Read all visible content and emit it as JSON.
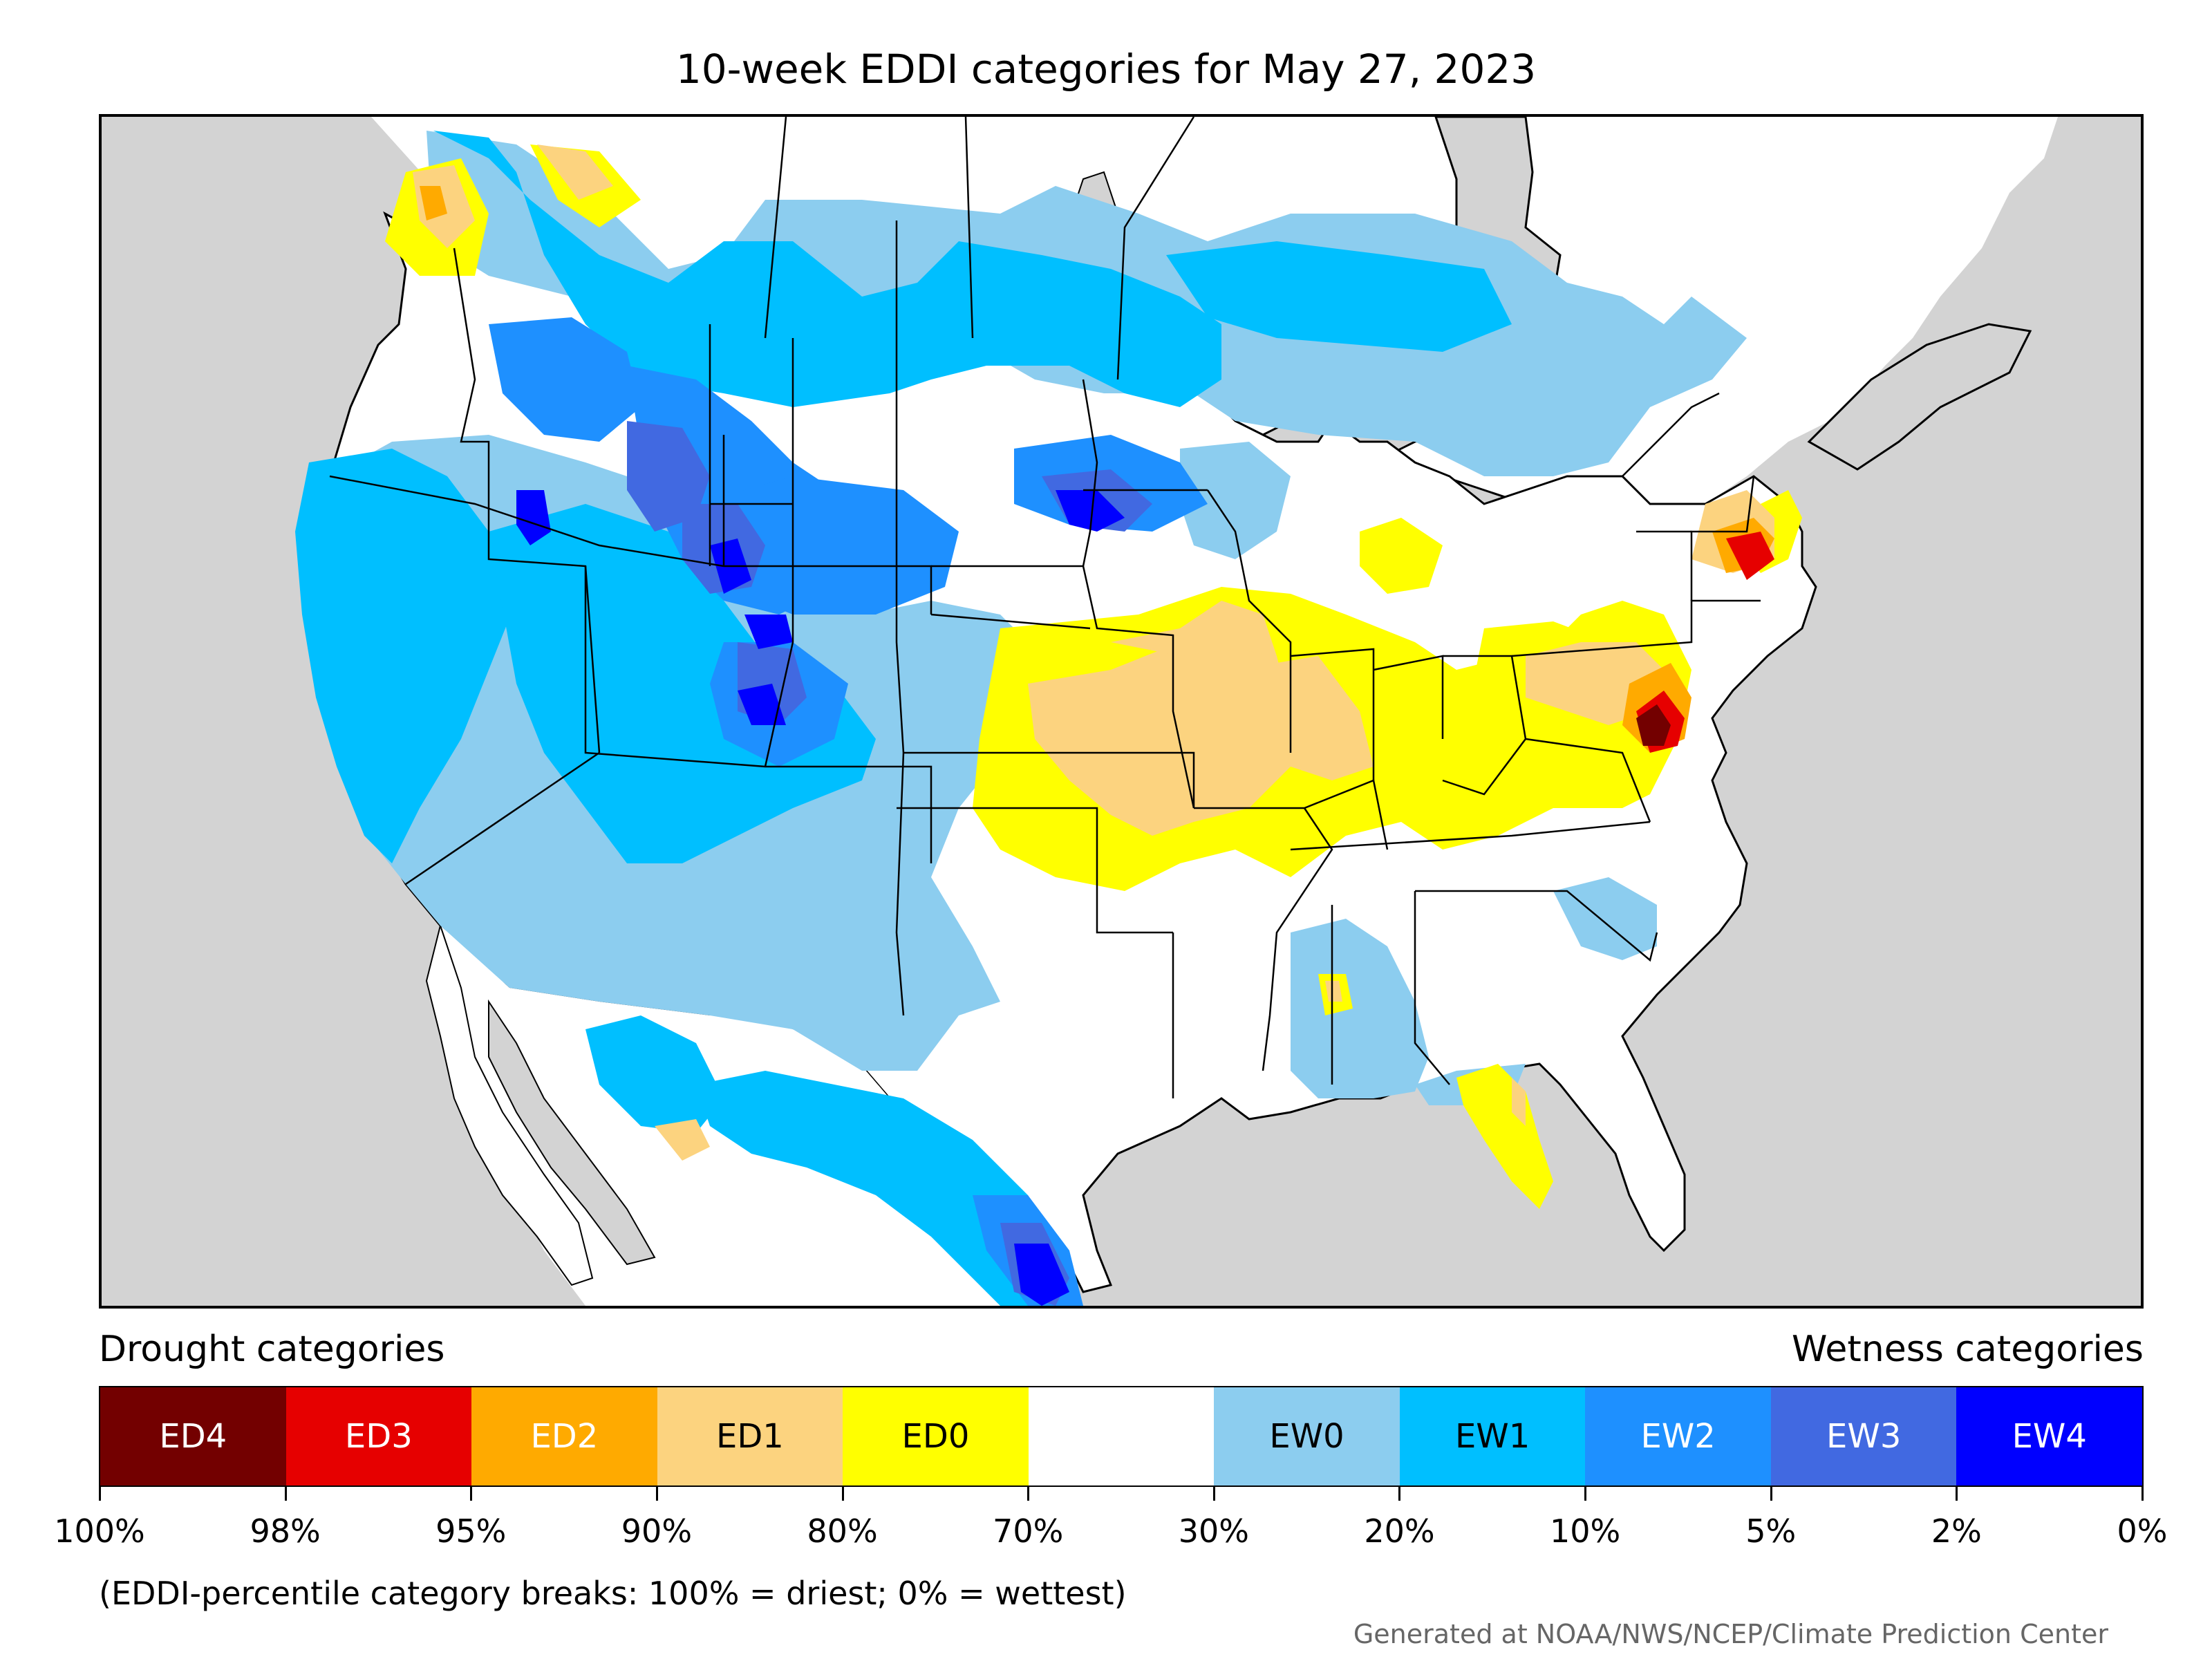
{
  "title": "10-week EDDI categories for May 27, 2023",
  "legend": {
    "drought_heading": "Drought categories",
    "wetness_heading": "Wetness categories",
    "categories": [
      {
        "label": "ED4",
        "color": "#730000",
        "text_color": "#ffffff"
      },
      {
        "label": "ED3",
        "color": "#e60000",
        "text_color": "#ffffff"
      },
      {
        "label": "ED2",
        "color": "#ffaa00",
        "text_color": "#ffffff"
      },
      {
        "label": "ED1",
        "color": "#fcd37f",
        "text_color": "#000000"
      },
      {
        "label": "ED0",
        "color": "#ffff00",
        "text_color": "#000000"
      },
      {
        "label": "",
        "color": "#ffffff",
        "text_color": "#000000"
      },
      {
        "label": "EW0",
        "color": "#8ccdef",
        "text_color": "#000000"
      },
      {
        "label": "EW1",
        "color": "#00bfff",
        "text_color": "#000000"
      },
      {
        "label": "EW2",
        "color": "#1e90ff",
        "text_color": "#ffffff"
      },
      {
        "label": "EW3",
        "color": "#4169e1",
        "text_color": "#ffffff"
      },
      {
        "label": "EW4",
        "color": "#0000ff",
        "text_color": "#ffffff"
      }
    ],
    "tick_labels": [
      "100%",
      "98%",
      "95%",
      "90%",
      "80%",
      "70%",
      "30%",
      "20%",
      "10%",
      "5%",
      "2%",
      "0%"
    ],
    "note": "(EDDI-percentile category breaks: 100% = driest; 0% = wettest)"
  },
  "credit": "Generated at NOAA/NWS/NCEP/Climate Prediction Center",
  "map": {
    "ocean_color": "#d3d3d3",
    "land_color": "#ffffff",
    "border_color": "#000000"
  }
}
